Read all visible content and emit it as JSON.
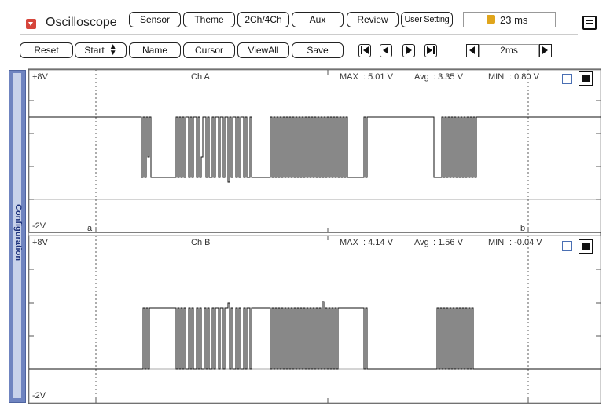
{
  "app": {
    "title": "Oscilloscope"
  },
  "toolbar_top": {
    "buttons": [
      "Sensor",
      "Theme",
      "2Ch/4Ch",
      "Aux",
      "Review",
      "User Setting"
    ],
    "status_time": "23 ms"
  },
  "toolbar_bottom": {
    "reset": "Reset",
    "start": "Start",
    "name": "Name",
    "cursor": "Cursor",
    "viewall": "ViewAll",
    "save": "Save",
    "timebase": "2ms"
  },
  "sidebar": {
    "label": "Configuration"
  },
  "channels": [
    {
      "name": "Ch A",
      "top_label": "+8V",
      "bottom_label": "-2V",
      "max_label": "MAX",
      "max": ": 5.01 V",
      "avg_label": "Avg",
      "avg": ": 3.35 V",
      "min_label": "MIN",
      "min": ": 0.80 V",
      "cursor_a": "a",
      "cursor_b": "b"
    },
    {
      "name": "Ch B",
      "top_label": "+8V",
      "bottom_label": "-2V",
      "max_label": "MAX",
      "max": ": 4.14 V",
      "avg_label": "Avg",
      "avg": ": 1.56 V",
      "min_label": "MIN",
      "min": ": -0.04 V"
    }
  ],
  "colors": {
    "accent": "#d6453b",
    "sidebar": "#6f84c0",
    "trace": "#111111"
  }
}
